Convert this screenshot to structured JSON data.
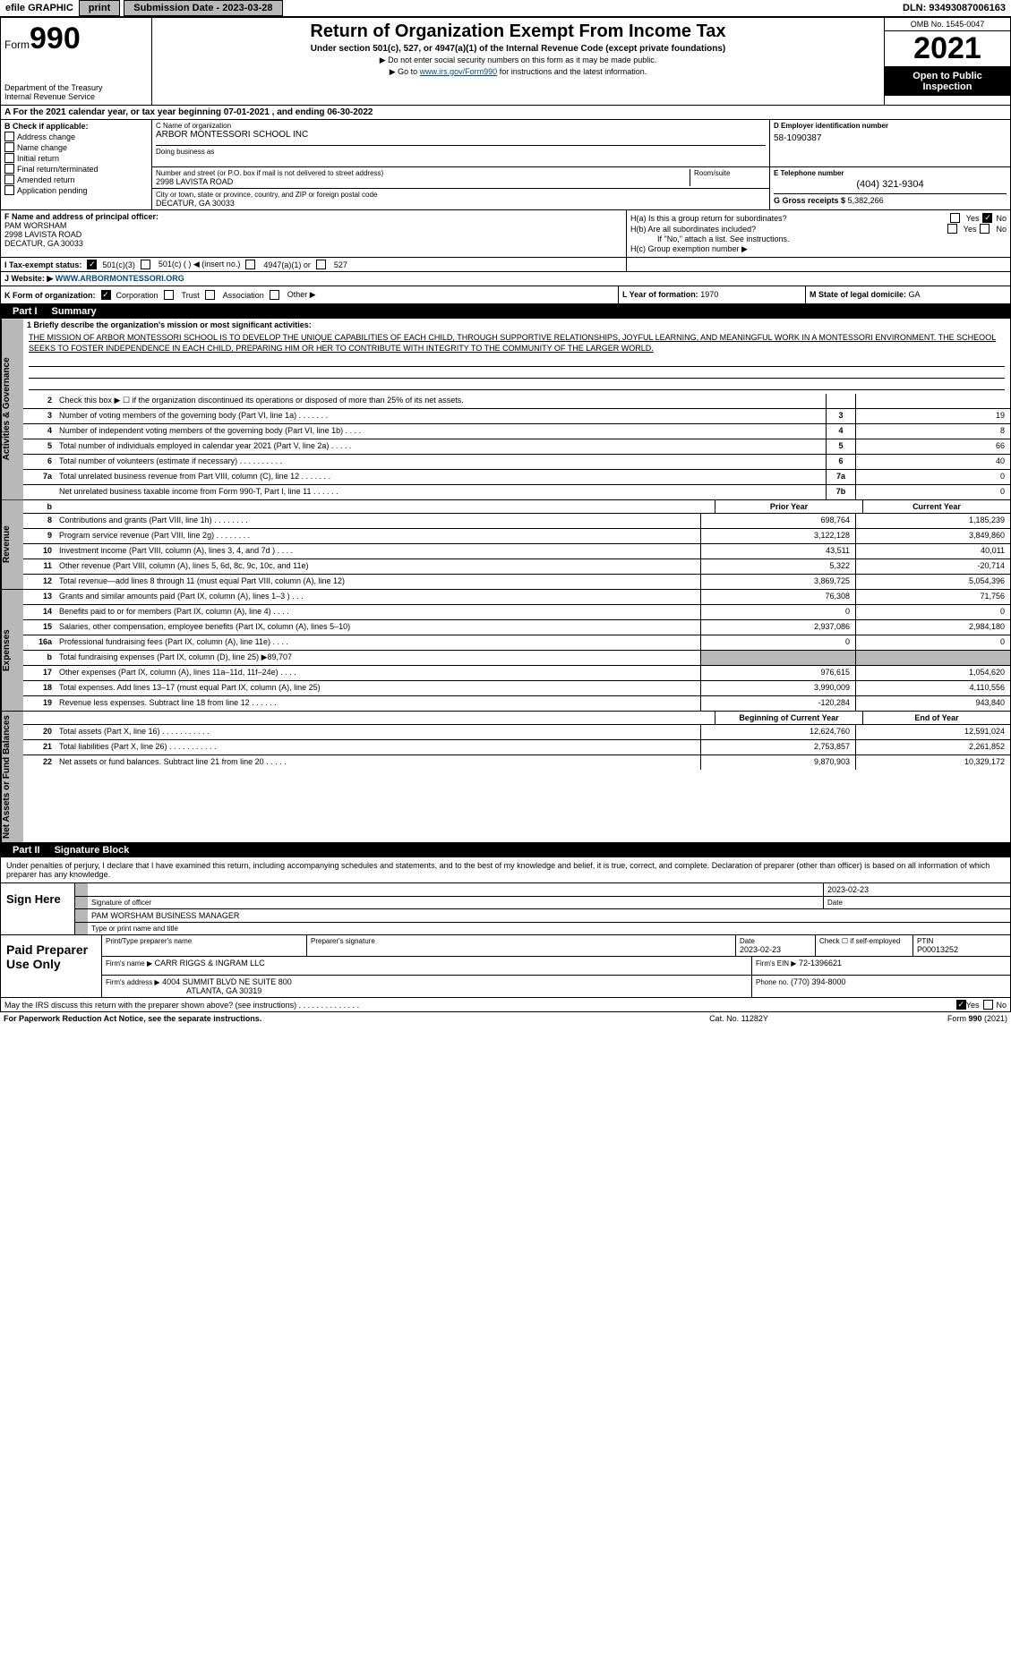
{
  "top": {
    "efile": "efile GRAPHIC",
    "print": "print",
    "submission": "Submission Date - 2023-03-28",
    "dln": "DLN: 93493087006163"
  },
  "header": {
    "form_label": "Form",
    "form_num": "990",
    "dept": "Department of the Treasury",
    "irs": "Internal Revenue Service",
    "title": "Return of Organization Exempt From Income Tax",
    "sub": "Under section 501(c), 527, or 4947(a)(1) of the Internal Revenue Code (except private foundations)",
    "note1": "▶ Do not enter social security numbers on this form as it may be made public.",
    "note2_pre": "▶ Go to ",
    "note2_link": "www.irs.gov/Form990",
    "note2_post": " for instructions and the latest information.",
    "omb": "OMB No. 1545-0047",
    "year": "2021",
    "open": "Open to Public Inspection"
  },
  "rowA": "A For the 2021 calendar year, or tax year beginning 07-01-2021    , and ending 06-30-2022",
  "colB": {
    "label": "B Check if applicable:",
    "items": [
      "Address change",
      "Name change",
      "Initial return",
      "Final return/terminated",
      "Amended return",
      "Application pending"
    ]
  },
  "colC": {
    "name_label": "C Name of organization",
    "name": "ARBOR MONTESSORI SCHOOL INC",
    "dba_label": "Doing business as",
    "addr_label": "Number and street (or P.O. box if mail is not delivered to street address)",
    "addr": "2998 LAVISTA ROAD",
    "room_label": "Room/suite",
    "city_label": "City or town, state or province, country, and ZIP or foreign postal code",
    "city": "DECATUR, GA  30033"
  },
  "colD": {
    "label": "D Employer identification number",
    "val": "58-1090387"
  },
  "colE": {
    "label": "E Telephone number",
    "val": "(404) 321-9304"
  },
  "colG": {
    "label": "G Gross receipts $",
    "val": "5,382,266"
  },
  "colF": {
    "label": "F  Name and address of principal officer:",
    "name": "PAM WORSHAM",
    "addr1": "2998 LAVISTA ROAD",
    "addr2": "DECATUR, GA  30033"
  },
  "colH": {
    "a": "H(a)  Is this a group return for subordinates?",
    "b": "H(b)  Are all subordinates included?",
    "b_note": "If \"No,\" attach a list. See instructions.",
    "c": "H(c)  Group exemption number ▶",
    "yes": "Yes",
    "no": "No"
  },
  "rowI": {
    "label": "I  Tax-exempt status:",
    "opt1": "501(c)(3)",
    "opt2": "501(c) (   ) ◀ (insert no.)",
    "opt3": "4947(a)(1) or",
    "opt4": "527"
  },
  "rowJ": {
    "label": "J  Website: ▶",
    "val": "WWW.ARBORMONTESSORI.ORG"
  },
  "rowK": {
    "label": "K Form of organization:",
    "corp": "Corporation",
    "trust": "Trust",
    "assoc": "Association",
    "other": "Other ▶"
  },
  "rowL": {
    "label": "L Year of formation:",
    "val": "1970"
  },
  "rowM": {
    "label": "M State of legal domicile:",
    "val": "GA"
  },
  "partI": {
    "label": "Part I",
    "title": "Summary"
  },
  "mission": {
    "line1_label": "1  Briefly describe the organization's mission or most significant activities:",
    "text": "THE MISSION OF ARBOR MONTESSORI SCHOOL IS TO DEVELOP THE UNIQUE CAPABILITIES OF EACH CHILD, THROUGH SUPPORTIVE RELATIONSHIPS, JOYFUL LEARNING, AND MEANINGFUL WORK IN A MONTESSORI ENVIRONMENT. THE SCHEOOL SEEKS TO FOSTER INDEPENDENCE IN EACH CHILD, PREPARING HIM OR HER TO CONTRIBUTE WITH INTEGRITY TO THE COMMUNITY OF THE LARGER WORLD."
  },
  "gov_lines": [
    {
      "n": "2",
      "t": "Check this box ▶ ☐  if the organization discontinued its operations or disposed of more than 25% of its net assets.",
      "box": "",
      "v": ""
    },
    {
      "n": "3",
      "t": "Number of voting members of the governing body (Part VI, line 1a)   .    .    .    .    .    .    .",
      "box": "3",
      "v": "19"
    },
    {
      "n": "4",
      "t": "Number of independent voting members of the governing body (Part VI, line 1b)    .    .    .    .",
      "box": "4",
      "v": "8"
    },
    {
      "n": "5",
      "t": "Total number of individuals employed in calendar year 2021 (Part V, line 2a)   .    .    .    .    .",
      "box": "5",
      "v": "66"
    },
    {
      "n": "6",
      "t": "Total number of volunteers (estimate if necessary)    .    .    .    .    .    .    .    .    .    .",
      "box": "6",
      "v": "40"
    },
    {
      "n": "7a",
      "t": "Total unrelated business revenue from Part VIII, column (C), line 12   .    .    .    .    .    .    .",
      "box": "7a",
      "v": "0"
    },
    {
      "n": "",
      "t": "Net unrelated business taxable income from Form 990-T, Part I, line 11   .    .    .    .    .    .",
      "box": "7b",
      "v": "0"
    }
  ],
  "col_headers": {
    "b": "b",
    "prior": "Prior Year",
    "current": "Current Year"
  },
  "rev_lines": [
    {
      "n": "8",
      "t": "Contributions and grants (Part VIII, line 1h)   .    .    .    .    .    .    .    .",
      "p": "698,764",
      "c": "1,185,239"
    },
    {
      "n": "9",
      "t": "Program service revenue (Part VIII, line 2g)    .    .    .    .    .    .    .    .",
      "p": "3,122,128",
      "c": "3,849,860"
    },
    {
      "n": "10",
      "t": "Investment income (Part VIII, column (A), lines 3, 4, and 7d )    .    .    .    .",
      "p": "43,511",
      "c": "40,011"
    },
    {
      "n": "11",
      "t": "Other revenue (Part VIII, column (A), lines 5, 6d, 8c, 9c, 10c, and 11e)",
      "p": "5,322",
      "c": "-20,714"
    },
    {
      "n": "12",
      "t": "Total revenue—add lines 8 through 11 (must equal Part VIII, column (A), line 12)",
      "p": "3,869,725",
      "c": "5,054,396"
    }
  ],
  "exp_lines": [
    {
      "n": "13",
      "t": "Grants and similar amounts paid (Part IX, column (A), lines 1–3 )   .    .    .",
      "p": "76,308",
      "c": "71,756"
    },
    {
      "n": "14",
      "t": "Benefits paid to or for members (Part IX, column (A), line 4)   .    .    .    .",
      "p": "0",
      "c": "0"
    },
    {
      "n": "15",
      "t": "Salaries, other compensation, employee benefits (Part IX, column (A), lines 5–10)",
      "p": "2,937,086",
      "c": "2,984,180"
    },
    {
      "n": "16a",
      "t": "Professional fundraising fees (Part IX, column (A), line 11e)   .    .    .    .",
      "p": "0",
      "c": "0"
    },
    {
      "n": "b",
      "t": "Total fundraising expenses (Part IX, column (D), line 25) ▶89,707",
      "p": "",
      "c": "",
      "grey": true
    },
    {
      "n": "17",
      "t": "Other expenses (Part IX, column (A), lines 11a–11d, 11f–24e)   .    .    .    .",
      "p": "976,615",
      "c": "1,054,620"
    },
    {
      "n": "18",
      "t": "Total expenses. Add lines 13–17 (must equal Part IX, column (A), line 25)",
      "p": "3,990,009",
      "c": "4,110,556"
    },
    {
      "n": "19",
      "t": "Revenue less expenses. Subtract line 18 from line 12   .    .    .    .    .    .",
      "p": "-120,284",
      "c": "943,840"
    }
  ],
  "net_headers": {
    "begin": "Beginning of Current Year",
    "end": "End of Year"
  },
  "net_lines": [
    {
      "n": "20",
      "t": "Total assets (Part X, line 16)   .    .    .    .    .    .    .    .    .    .    .",
      "p": "12,624,760",
      "c": "12,591,024"
    },
    {
      "n": "21",
      "t": "Total liabilities (Part X, line 26)   .    .    .    .    .    .    .    .    .    .    .",
      "p": "2,753,857",
      "c": "2,261,852"
    },
    {
      "n": "22",
      "t": "Net assets or fund balances. Subtract line 21 from line 20   .    .    .    .    .",
      "p": "9,870,903",
      "c": "10,329,172"
    }
  ],
  "partII": {
    "label": "Part II",
    "title": "Signature Block"
  },
  "sig_intro": "Under penalties of perjury, I declare that I have examined this return, including accompanying schedules and statements, and to the best of my knowledge and belief, it is true, correct, and complete. Declaration of preparer (other than officer) is based on all information of which preparer has any knowledge.",
  "sign": {
    "here": "Sign Here",
    "sig_label": "Signature of officer",
    "date_label": "Date",
    "date": "2023-02-23",
    "name": "PAM WORSHAM  BUSINESS MANAGER",
    "name_label": "Type or print name and title"
  },
  "prep": {
    "label": "Paid Preparer Use Only",
    "h1": "Print/Type preparer's name",
    "h2": "Preparer's signature",
    "h3": "Date",
    "h3v": "2023-02-23",
    "h4": "Check ☐ if self-employed",
    "h5": "PTIN",
    "h5v": "P00013252",
    "firm_label": "Firm's name    ▶",
    "firm": "CARR RIGGS & INGRAM LLC",
    "ein_label": "Firm's EIN ▶",
    "ein": "72-1396621",
    "addr_label": "Firm's address ▶",
    "addr1": "4004 SUMMIT BLVD NE SUITE 800",
    "addr2": "ATLANTA, GA  30319",
    "phone_label": "Phone no.",
    "phone": "(770) 394-8000"
  },
  "discuss": {
    "text": "May the IRS discuss this return with the preparer shown above? (see instructions)   .    .    .    .    .    .    .    .    .    .    .    .    .    .",
    "yes": "Yes",
    "no": "No"
  },
  "footer": {
    "left": "For Paperwork Reduction Act Notice, see the separate instructions.",
    "mid": "Cat. No. 11282Y",
    "right": "Form 990 (2021)"
  },
  "vtabs": {
    "gov": "Activities & Governance",
    "rev": "Revenue",
    "exp": "Expenses",
    "net": "Net Assets or Fund Balances"
  }
}
